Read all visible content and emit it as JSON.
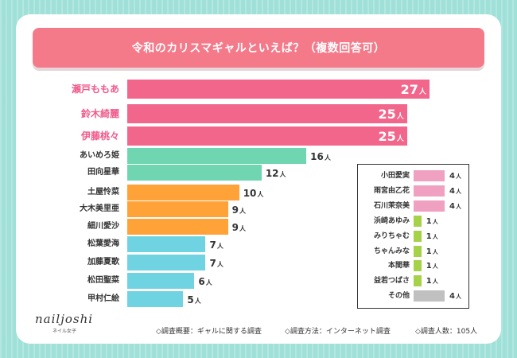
{
  "chart_data": {
    "type": "bar",
    "orientation": "horizontal",
    "title": "令和のカリスマギャルといえば？（複数回答可）",
    "unit": "人",
    "main": [
      {
        "name": "瀬戸ももあ",
        "value": 27,
        "color": "#f2668b",
        "top3": true
      },
      {
        "name": "鈴木綺麗",
        "value": 25,
        "color": "#f2668b",
        "top3": true
      },
      {
        "name": "伊藤桃々",
        "value": 25,
        "color": "#f2668b",
        "top3": true
      },
      {
        "name": "あいめろ姫",
        "value": 16,
        "color": "#6fd6b1"
      },
      {
        "name": "田向星華",
        "value": 12,
        "color": "#6fd6b1"
      },
      {
        "name": "土屋怜菜",
        "value": 10,
        "color": "#ffa338"
      },
      {
        "name": "大木美里亜",
        "value": 9,
        "color": "#ffa338"
      },
      {
        "name": "細川愛沙",
        "value": 9,
        "color": "#ffa338"
      },
      {
        "name": "松葉愛海",
        "value": 7,
        "color": "#6fd3e2"
      },
      {
        "name": "加藤夏歌",
        "value": 7,
        "color": "#6fd3e2"
      },
      {
        "name": "松田聖菜",
        "value": 6,
        "color": "#6fd3e2"
      },
      {
        "name": "甲村仁絵",
        "value": 5,
        "color": "#6fd3e2"
      }
    ],
    "others": [
      {
        "name": "小田愛実",
        "value": 4,
        "color": "#f0a0c0"
      },
      {
        "name": "雨宮由乙花",
        "value": 4,
        "color": "#f0a0c0"
      },
      {
        "name": "石川茉奈美",
        "value": 4,
        "color": "#f0a0c0"
      },
      {
        "name": "浜崎あゆみ",
        "value": 1,
        "color": "#a6d24a"
      },
      {
        "name": "みりちゃむ",
        "value": 1,
        "color": "#a6d24a"
      },
      {
        "name": "ちゃんみな",
        "value": 1,
        "color": "#a6d24a"
      },
      {
        "name": "本間華",
        "value": 1,
        "color": "#a6d24a"
      },
      {
        "name": "益若つばさ",
        "value": 1,
        "color": "#a6d24a"
      },
      {
        "name": "その他",
        "value": 4,
        "color": "#c0c0c0"
      }
    ]
  },
  "brand": {
    "name": "nailjoshi",
    "sub": "ネイル女子"
  },
  "footer": [
    "◇調査概要：ギャルに関する調査",
    "◇調査方法：インターネット調査",
    "◇調査人数：105人"
  ]
}
